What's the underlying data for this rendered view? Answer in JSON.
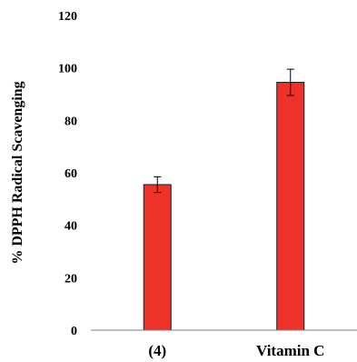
{
  "chart_data": {
    "type": "bar",
    "title": "",
    "xlabel": "",
    "ylabel": "% DPPH Radical Scavenging",
    "categories": [
      "(4)",
      "Vitamin C"
    ],
    "series": [
      {
        "values": [
          55.5,
          94.5
        ],
        "errors": [
          3,
          5
        ],
        "color": "#EE3129"
      }
    ],
    "ylim": [
      0,
      120
    ],
    "yticks": [
      0,
      20,
      40,
      60,
      80,
      100,
      120
    ],
    "ytick_labels": [
      "0",
      "20",
      "40",
      "60",
      "80",
      "100",
      "120"
    ],
    "grid": false,
    "legend": "none"
  }
}
